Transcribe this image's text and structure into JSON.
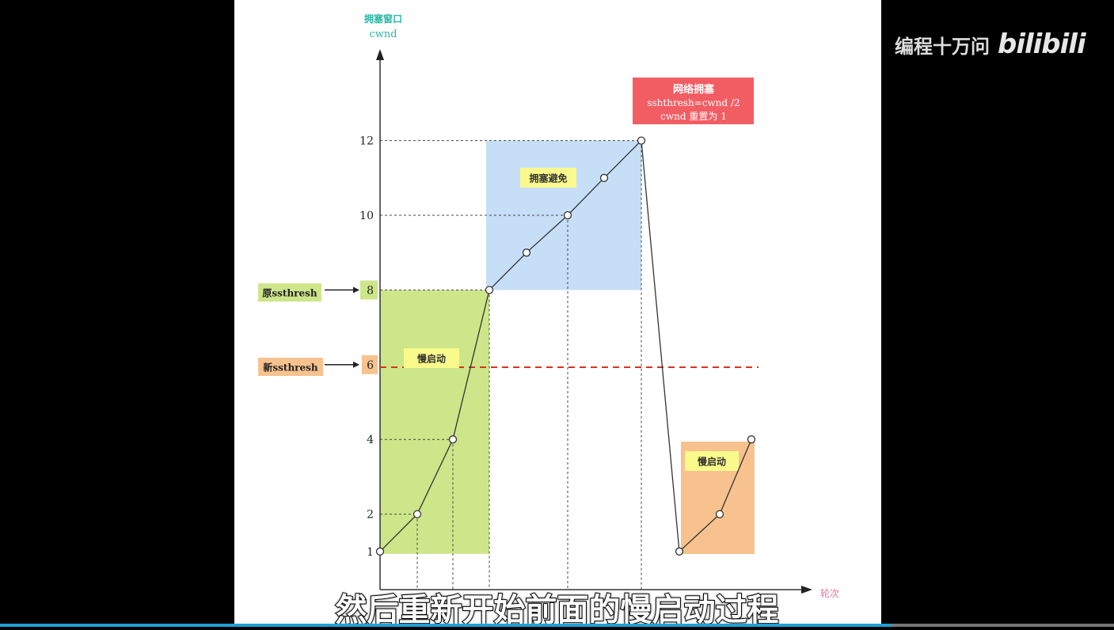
{
  "channel": {
    "name": "编程十万问",
    "logo_text": "bilibili"
  },
  "subtitle": "然后重新开始前面的慢启动过程",
  "progress_percent": 80,
  "chart_data": {
    "type": "line",
    "ylabel_line1": "拥塞窗口",
    "ylabel_line2": "cwnd",
    "xlabel": "轮次",
    "yticks": [
      1,
      2,
      4,
      6,
      8,
      10,
      12
    ],
    "x": [
      0,
      1,
      2,
      3,
      4,
      5,
      6,
      7,
      8,
      9,
      10
    ],
    "values": [
      1,
      2,
      4,
      8,
      9,
      10,
      11,
      12,
      1,
      2,
      4
    ],
    "regions": {
      "slow_start_1": "慢启动",
      "congestion_avoidance": "拥塞避免",
      "slow_start_2": "慢启动"
    },
    "congestion_note": {
      "title": "网络拥塞",
      "line2": "sshthresh=cwnd /2",
      "line3": "cwnd 重置为 1"
    },
    "old_ssthresh": {
      "label": "原ssthresh",
      "value": 8
    },
    "new_ssthresh": {
      "label": "新ssthresh",
      "value": 6
    },
    "colors": {
      "axis_label": "#2bb5a5",
      "xlabel": "#e8739a",
      "slow_start": "#cde68a",
      "avoidance": "#c6dff7",
      "slow_start_2": "#f7c28e",
      "note": "#f25d63",
      "label_bg": "#fafa8c",
      "threshold_line": "#d9331a"
    }
  }
}
